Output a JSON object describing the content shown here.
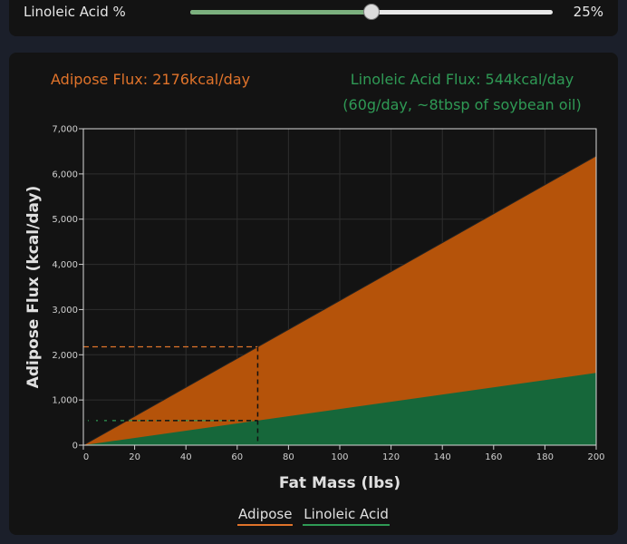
{
  "slider": {
    "label": "Linoleic Acid %",
    "value_text": "25%",
    "value": 25,
    "min": 0,
    "max": 50
  },
  "readouts": {
    "adipose": "Adipose Flux: 2176kcal/day",
    "linoleic": "Linoleic Acid Flux: 544kcal/day",
    "linoleic_detail": "(60g/day, ~8tbsp of soybean oil)"
  },
  "colors": {
    "adipose": "#b5530a",
    "linoleic": "#16673a",
    "adipose_text": "#e0732a",
    "linoleic_text": "#2f9a55"
  },
  "chart_data": {
    "type": "area",
    "xlabel": "Fat Mass (lbs)",
    "ylabel": "Adipose Flux (kcal/day)",
    "xlim": [
      0,
      200
    ],
    "ylim": [
      0,
      7000
    ],
    "x_ticks": [
      0,
      20,
      40,
      60,
      80,
      100,
      120,
      140,
      160,
      180,
      200
    ],
    "y_ticks": [
      "0",
      "1,000",
      "2,000",
      "3,000",
      "4,000",
      "5,000",
      "6,000",
      "7,000"
    ],
    "grid": true,
    "x": [
      0,
      200
    ],
    "series": [
      {
        "name": "Adipose",
        "values": [
          0,
          6400
        ]
      },
      {
        "name": "Linoleic Acid",
        "values": [
          0,
          1600
        ]
      }
    ],
    "marker": {
      "x": 68,
      "adipose": 2176,
      "linoleic": 544
    },
    "legend": [
      "Adipose",
      "Linoleic Acid"
    ],
    "legend_position": "bottom"
  }
}
